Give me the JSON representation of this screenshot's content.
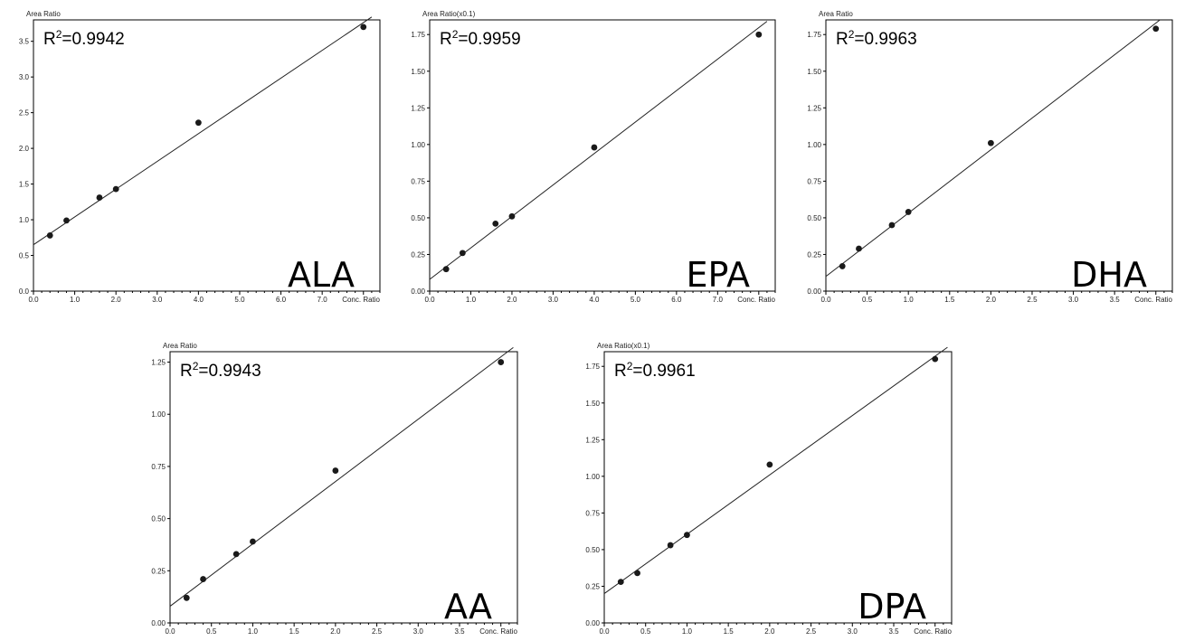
{
  "chart_data": [
    {
      "type": "scatter",
      "label": "ALA",
      "ylabel": "Area Ratio",
      "xlabel": "Conc. Ratio",
      "r2_prefix": "R",
      "r2_sup": "2",
      "r2_value": "=0.9942",
      "xlim": [
        0,
        8.4
      ],
      "ylim": [
        0,
        3.8
      ],
      "xticks": [
        "0.0",
        "1.0",
        "2.0",
        "3.0",
        "4.0",
        "5.0",
        "6.0",
        "7.0"
      ],
      "xtick_values": [
        0,
        1,
        2,
        3,
        4,
        5,
        6,
        7
      ],
      "yticks": [
        "0.0",
        "0.5",
        "1.0",
        "1.5",
        "2.0",
        "2.5",
        "3.0",
        "3.5"
      ],
      "ytick_values": [
        0,
        0.5,
        1,
        1.5,
        2,
        2.5,
        3,
        3.5
      ],
      "points": [
        [
          0.4,
          0.78
        ],
        [
          0.8,
          0.99
        ],
        [
          1.6,
          1.31
        ],
        [
          2.0,
          1.43
        ],
        [
          4.0,
          2.36
        ],
        [
          8.0,
          3.7
        ]
      ],
      "fit": {
        "x": [
          0,
          8.2
        ],
        "y": [
          0.65,
          3.84
        ]
      }
    },
    {
      "type": "scatter",
      "label": "EPA",
      "ylabel": "Area Ratio(x0.1)",
      "xlabel": "Conc. Ratio",
      "r2_prefix": "R",
      "r2_sup": "2",
      "r2_value": "=0.9959",
      "xlim": [
        0,
        8.4
      ],
      "ylim": [
        0,
        1.85
      ],
      "xticks": [
        "0.0",
        "1.0",
        "2.0",
        "3.0",
        "4.0",
        "5.0",
        "6.0",
        "7.0"
      ],
      "xtick_values": [
        0,
        1,
        2,
        3,
        4,
        5,
        6,
        7
      ],
      "yticks": [
        "0.00",
        "0.25",
        "0.50",
        "0.75",
        "1.00",
        "1.25",
        "1.50",
        "1.75"
      ],
      "ytick_values": [
        0,
        0.25,
        0.5,
        0.75,
        1,
        1.25,
        1.5,
        1.75
      ],
      "points": [
        [
          0.4,
          0.15
        ],
        [
          0.8,
          0.26
        ],
        [
          1.6,
          0.46
        ],
        [
          2.0,
          0.51
        ],
        [
          4.0,
          0.98
        ],
        [
          8.0,
          1.75
        ]
      ],
      "fit": {
        "x": [
          0,
          8.2
        ],
        "y": [
          0.08,
          1.84
        ]
      }
    },
    {
      "type": "scatter",
      "label": "DHA",
      "ylabel": "Area Ratio",
      "xlabel": "Conc. Ratio",
      "r2_prefix": "R",
      "r2_sup": "2",
      "r2_value": "=0.9963",
      "xlim": [
        0,
        4.2
      ],
      "ylim": [
        0,
        1.85
      ],
      "xticks": [
        "0.0",
        "0.5",
        "1.0",
        "1.5",
        "2.0",
        "2.5",
        "3.0",
        "3.5"
      ],
      "xtick_values": [
        0,
        0.5,
        1,
        1.5,
        2,
        2.5,
        3,
        3.5
      ],
      "yticks": [
        "0.00",
        "0.25",
        "0.50",
        "0.75",
        "1.00",
        "1.25",
        "1.50",
        "1.75"
      ],
      "ytick_values": [
        0,
        0.25,
        0.5,
        0.75,
        1,
        1.25,
        1.5,
        1.75
      ],
      "points": [
        [
          0.2,
          0.17
        ],
        [
          0.4,
          0.29
        ],
        [
          0.8,
          0.45
        ],
        [
          1.0,
          0.54
        ],
        [
          2.0,
          1.01
        ],
        [
          4.0,
          1.79
        ]
      ],
      "fit": {
        "x": [
          0,
          4.05
        ],
        "y": [
          0.1,
          1.85
        ]
      }
    },
    {
      "type": "scatter",
      "label": "AA",
      "ylabel": "Area Ratio",
      "xlabel": "Conc. Ratio",
      "r2_prefix": "R",
      "r2_sup": "2",
      "r2_value": "=0.9943",
      "xlim": [
        0,
        4.2
      ],
      "ylim": [
        0,
        1.3
      ],
      "xticks": [
        "0.0",
        "0.5",
        "1.0",
        "1.5",
        "2.0",
        "2.5",
        "3.0",
        "3.5"
      ],
      "xtick_values": [
        0,
        0.5,
        1,
        1.5,
        2,
        2.5,
        3,
        3.5
      ],
      "yticks": [
        "0.00",
        "0.25",
        "0.50",
        "0.75",
        "1.00",
        "1.25"
      ],
      "ytick_values": [
        0,
        0.25,
        0.5,
        0.75,
        1,
        1.25
      ],
      "points": [
        [
          0.2,
          0.12
        ],
        [
          0.4,
          0.21
        ],
        [
          0.8,
          0.33
        ],
        [
          1.0,
          0.39
        ],
        [
          2.0,
          0.73
        ],
        [
          4.0,
          1.25
        ]
      ],
      "fit": {
        "x": [
          0,
          4.15
        ],
        "y": [
          0.08,
          1.32
        ]
      }
    },
    {
      "type": "scatter",
      "label": "DPA",
      "ylabel": "Area Ratio(x0.1)",
      "xlabel": "Conc. Ratio",
      "r2_prefix": "R",
      "r2_sup": "2",
      "r2_value": "=0.9961",
      "xlim": [
        0,
        4.2
      ],
      "ylim": [
        0,
        1.85
      ],
      "xticks": [
        "0.0",
        "0.5",
        "1.0",
        "1.5",
        "2.0",
        "2.5",
        "3.0",
        "3.5"
      ],
      "xtick_values": [
        0,
        0.5,
        1,
        1.5,
        2,
        2.5,
        3,
        3.5
      ],
      "yticks": [
        "0.00",
        "0.25",
        "0.50",
        "0.75",
        "1.00",
        "1.25",
        "1.50",
        "1.75"
      ],
      "ytick_values": [
        0,
        0.25,
        0.5,
        0.75,
        1,
        1.25,
        1.5,
        1.75
      ],
      "points": [
        [
          0.2,
          0.28
        ],
        [
          0.4,
          0.34
        ],
        [
          0.8,
          0.53
        ],
        [
          1.0,
          0.6
        ],
        [
          2.0,
          1.08
        ],
        [
          4.0,
          1.8
        ]
      ],
      "fit": {
        "x": [
          0,
          4.15
        ],
        "y": [
          0.2,
          1.88
        ]
      }
    }
  ]
}
